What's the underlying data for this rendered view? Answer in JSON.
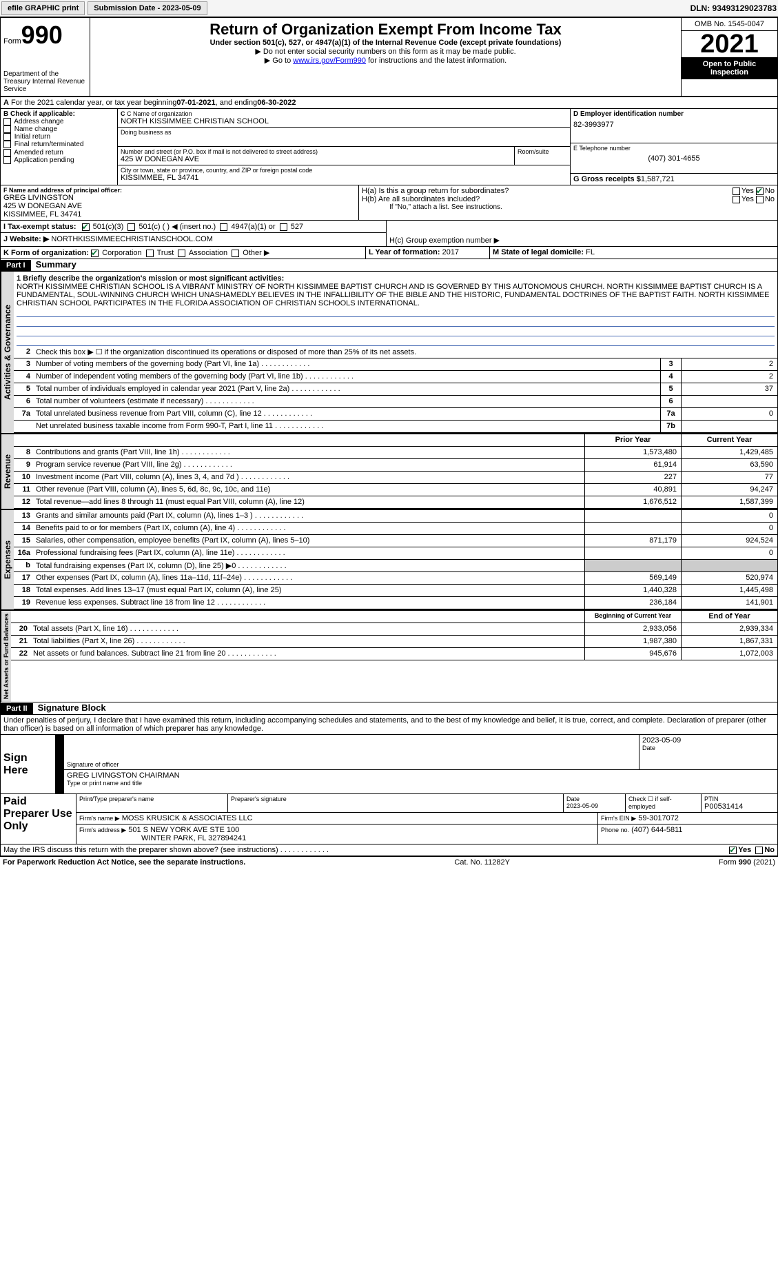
{
  "toolbar": {
    "efile": "efile GRAPHIC print",
    "submission": "Submission Date - 2023-05-09",
    "dln": "DLN: 93493129023783"
  },
  "header": {
    "form_prefix": "Form",
    "form_number": "990",
    "title": "Return of Organization Exempt From Income Tax",
    "subtitle": "Under section 501(c), 527, or 4947(a)(1) of the Internal Revenue Code (except private foundations)",
    "instr1": "▶ Do not enter social security numbers on this form as it may be made public.",
    "instr2_pre": "▶ Go to ",
    "instr2_link": "www.irs.gov/Form990",
    "instr2_post": " for instructions and the latest information.",
    "dept": "Department of the Treasury Internal Revenue Service",
    "omb": "OMB No. 1545-0047",
    "year": "2021",
    "open": "Open to Public Inspection"
  },
  "periodA": {
    "text_pre": "For the 2021 calendar year, or tax year beginning ",
    "begin": "07-01-2021",
    "mid": " , and ending ",
    "end": "06-30-2022"
  },
  "sectionB": {
    "label": "B Check if applicable:",
    "items": [
      "Address change",
      "Name change",
      "Initial return",
      "Final return/terminated",
      "Amended return",
      "Application pending"
    ]
  },
  "sectionC": {
    "name_label": "C Name of organization",
    "name": "NORTH KISSIMMEE CHRISTIAN SCHOOL",
    "dba_label": "Doing business as",
    "street_label": "Number and street (or P.O. box if mail is not delivered to street address)",
    "street": "425 W DONEGAN AVE",
    "room_label": "Room/suite",
    "city_label": "City or town, state or province, country, and ZIP or foreign postal code",
    "city": "KISSIMMEE, FL  34741"
  },
  "sectionD": {
    "label": "D Employer identification number",
    "value": "82-3993977"
  },
  "sectionE": {
    "label": "E Telephone number",
    "value": "(407) 301-4655"
  },
  "sectionG": {
    "label": "G Gross receipts $",
    "value": "1,587,721"
  },
  "sectionF": {
    "label": "F  Name and address of principal officer:",
    "name": "GREG LIVINGSTON",
    "street": "425 W DONEGAN AVE",
    "city": "KISSIMMEE, FL  34741"
  },
  "sectionH": {
    "ha": "H(a)  Is this a group return for subordinates?",
    "hb": "H(b)  Are all subordinates included?",
    "hb_note": "If \"No,\" attach a list. See instructions.",
    "hc": "H(c)  Group exemption number ▶",
    "yes": "Yes",
    "no": "No"
  },
  "sectionI": {
    "label": "I  Tax-exempt status:",
    "opts": [
      "501(c)(3)",
      "501(c) (  ) ◀ (insert no.)",
      "4947(a)(1) or",
      "527"
    ]
  },
  "sectionJ": {
    "label": "J  Website: ▶",
    "value": "NORTHKISSIMMEECHRISTIANSCHOOL.COM"
  },
  "sectionK": {
    "label": "K Form of organization:",
    "opts": [
      "Corporation",
      "Trust",
      "Association",
      "Other ▶"
    ]
  },
  "sectionL": {
    "label": "L Year of formation:",
    "value": "2017"
  },
  "sectionM": {
    "label": "M State of legal domicile:",
    "value": "FL"
  },
  "part1": {
    "header": "Part I",
    "title": "Summary",
    "line1_label": "1  Briefly describe the organization's mission or most significant activities:",
    "mission": "NORTH KISSIMMEE CHRISTIAN SCHOOL IS A VIBRANT MINISTRY OF NORTH KISSIMMEE BAPTIST CHURCH AND IS GOVERNED BY THIS AUTONOMOUS CHURCH. NORTH KISSIMMEE BAPTIST CHURCH IS A FUNDAMENTAL, SOUL-WINNING CHURCH WHICH UNASHAMEDLY BELIEVES IN THE INFALLIBILITY OF THE BIBLE AND THE HISTORIC, FUNDAMENTAL DOCTRINES OF THE BAPTIST FAITH. NORTH KISSIMMEE CHRISTIAN SCHOOL PARTICIPATES IN THE FLORIDA ASSOCIATION OF CHRISTIAN SCHOOLS INTERNATIONAL.",
    "line2": "Check this box ▶ ☐ if the organization discontinued its operations or disposed of more than 25% of its net assets.",
    "gov_lines": [
      {
        "n": "3",
        "t": "Number of voting members of the governing body (Part VI, line 1a)",
        "box": "3",
        "v": "2"
      },
      {
        "n": "4",
        "t": "Number of independent voting members of the governing body (Part VI, line 1b)",
        "box": "4",
        "v": "2"
      },
      {
        "n": "5",
        "t": "Total number of individuals employed in calendar year 2021 (Part V, line 2a)",
        "box": "5",
        "v": "37"
      },
      {
        "n": "6",
        "t": "Total number of volunteers (estimate if necessary)",
        "box": "6",
        "v": ""
      },
      {
        "n": "7a",
        "t": "Total unrelated business revenue from Part VIII, column (C), line 12",
        "box": "7a",
        "v": "0"
      },
      {
        "n": "",
        "t": "Net unrelated business taxable income from Form 990-T, Part I, line 11",
        "box": "7b",
        "v": ""
      }
    ],
    "col_prior": "Prior Year",
    "col_current": "Current Year",
    "rev_lines": [
      {
        "n": "8",
        "t": "Contributions and grants (Part VIII, line 1h)",
        "p": "1,573,480",
        "c": "1,429,485"
      },
      {
        "n": "9",
        "t": "Program service revenue (Part VIII, line 2g)",
        "p": "61,914",
        "c": "63,590"
      },
      {
        "n": "10",
        "t": "Investment income (Part VIII, column (A), lines 3, 4, and 7d )",
        "p": "227",
        "c": "77"
      },
      {
        "n": "11",
        "t": "Other revenue (Part VIII, column (A), lines 5, 6d, 8c, 9c, 10c, and 11e)",
        "p": "40,891",
        "c": "94,247"
      },
      {
        "n": "12",
        "t": "Total revenue—add lines 8 through 11 (must equal Part VIII, column (A), line 12)",
        "p": "1,676,512",
        "c": "1,587,399"
      }
    ],
    "exp_lines": [
      {
        "n": "13",
        "t": "Grants and similar amounts paid (Part IX, column (A), lines 1–3 )",
        "p": "",
        "c": "0"
      },
      {
        "n": "14",
        "t": "Benefits paid to or for members (Part IX, column (A), line 4)",
        "p": "",
        "c": "0"
      },
      {
        "n": "15",
        "t": "Salaries, other compensation, employee benefits (Part IX, column (A), lines 5–10)",
        "p": "871,179",
        "c": "924,524"
      },
      {
        "n": "16a",
        "t": "Professional fundraising fees (Part IX, column (A), line 11e)",
        "p": "",
        "c": "0"
      },
      {
        "n": "b",
        "t": "Total fundraising expenses (Part IX, column (D), line 25) ▶0",
        "p": "SHADED",
        "c": "SHADED"
      },
      {
        "n": "17",
        "t": "Other expenses (Part IX, column (A), lines 11a–11d, 11f–24e)",
        "p": "569,149",
        "c": "520,974"
      },
      {
        "n": "18",
        "t": "Total expenses. Add lines 13–17 (must equal Part IX, column (A), line 25)",
        "p": "1,440,328",
        "c": "1,445,498"
      },
      {
        "n": "19",
        "t": "Revenue less expenses. Subtract line 18 from line 12",
        "p": "236,184",
        "c": "141,901"
      }
    ],
    "col_begin": "Beginning of Current Year",
    "col_end": "End of Year",
    "net_lines": [
      {
        "n": "20",
        "t": "Total assets (Part X, line 16)",
        "p": "2,933,056",
        "c": "2,939,334"
      },
      {
        "n": "21",
        "t": "Total liabilities (Part X, line 26)",
        "p": "1,987,380",
        "c": "1,867,331"
      },
      {
        "n": "22",
        "t": "Net assets or fund balances. Subtract line 21 from line 20",
        "p": "945,676",
        "c": "1,072,003"
      }
    ],
    "vert_gov": "Activities & Governance",
    "vert_rev": "Revenue",
    "vert_exp": "Expenses",
    "vert_net": "Net Assets or Fund Balances"
  },
  "part2": {
    "header": "Part II",
    "title": "Signature Block",
    "decl": "Under penalties of perjury, I declare that I have examined this return, including accompanying schedules and statements, and to the best of my knowledge and belief, it is true, correct, and complete. Declaration of preparer (other than officer) is based on all information of which preparer has any knowledge.",
    "sign_here": "Sign Here",
    "sig_officer": "Signature of officer",
    "sig_date": "2023-05-09",
    "date_label": "Date",
    "officer_name": "GREG LIVINGSTON  CHAIRMAN",
    "officer_label": "Type or print name and title",
    "paid": "Paid Preparer Use Only",
    "prep_name_label": "Print/Type preparer's name",
    "prep_sig_label": "Preparer's signature",
    "prep_date": "2023-05-09",
    "check_self": "Check ☐ if self-employed",
    "ptin_label": "PTIN",
    "ptin": "P00531414",
    "firm_name_label": "Firm's name    ▶",
    "firm_name": "MOSS KRUSICK & ASSOCIATES LLC",
    "firm_ein_label": "Firm's EIN ▶",
    "firm_ein": "59-3017072",
    "firm_addr_label": "Firm's address ▶",
    "firm_addr": "501 S NEW YORK AVE STE 100",
    "firm_city": "WINTER PARK, FL  327894241",
    "phone_label": "Phone no.",
    "phone": "(407) 644-5811",
    "discuss": "May the IRS discuss this return with the preparer shown above? (see instructions)",
    "yes": "Yes",
    "no": "No"
  },
  "footer": {
    "paperwork": "For Paperwork Reduction Act Notice, see the separate instructions.",
    "cat": "Cat. No. 11282Y",
    "form": "Form 990 (2021)"
  }
}
